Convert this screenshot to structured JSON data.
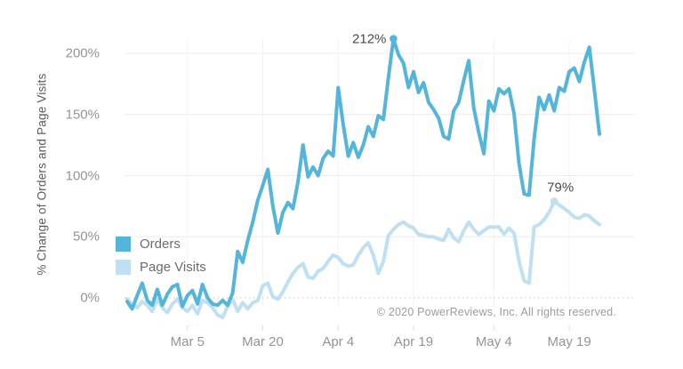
{
  "footer": {
    "copyright": "© 2020 PowerReviews, Inc. All rights reserved."
  },
  "annotations": [
    {
      "text": "212%",
      "series": 0,
      "point_index": 53,
      "value": 212,
      "placement": "left-of-point"
    },
    {
      "text": "79%",
      "series": 1,
      "point_index": 85,
      "value": 79,
      "placement": "above-point"
    }
  ],
  "chart_data": {
    "type": "line",
    "title": "",
    "xlabel": "",
    "ylabel": "% Change of Orders and Page Visits",
    "ylim": [
      -20,
      220
    ],
    "yticks": [
      0,
      50,
      100,
      150,
      200
    ],
    "ytick_labels": [
      "0%",
      "50%",
      "100%",
      "150%",
      "200%"
    ],
    "xtick_labels": [
      "Mar 5",
      "Mar 20",
      "Apr 4",
      "Apr 19",
      "May 4",
      "May 19"
    ],
    "xtick_indices": [
      12,
      27,
      42,
      57,
      73,
      88
    ],
    "grid": "horizontal-light, dotted zero line, faint vertical at date ticks",
    "legend_position": "inside lower-left",
    "series": [
      {
        "name": "Orders",
        "color": "#54b5da",
        "values": [
          -3,
          -9,
          2,
          12,
          -2,
          -6,
          7,
          -6,
          3,
          9,
          11,
          -7,
          2,
          6,
          -5,
          11,
          0,
          -5,
          -6,
          -2,
          -6,
          4,
          38,
          29,
          47,
          62,
          80,
          92,
          105,
          75,
          53,
          70,
          78,
          73,
          95,
          125,
          99,
          107,
          100,
          114,
          120,
          116,
          172,
          142,
          116,
          127,
          115,
          125,
          140,
          132,
          149,
          146,
          180,
          212,
          199,
          192,
          172,
          185,
          168,
          176,
          160,
          154,
          147,
          132,
          130,
          153,
          160,
          178,
          194,
          155,
          135,
          118,
          161,
          153,
          171,
          167,
          171,
          151,
          110,
          85,
          84,
          130,
          164,
          154,
          166,
          153,
          172,
          169,
          185,
          188,
          177,
          193,
          205,
          170,
          134
        ]
      },
      {
        "name": "Page Visits",
        "color": "#bfe0f1",
        "values": [
          -1,
          -5,
          -8,
          -3,
          -6,
          -11,
          -1,
          -8,
          -12,
          -5,
          -1,
          -8,
          -11,
          -6,
          -13,
          -2,
          -4,
          -8,
          -14,
          -16,
          -7,
          -1,
          -11,
          -4,
          -9,
          -4,
          -2,
          10,
          12,
          1,
          -1,
          5,
          13,
          20,
          25,
          28,
          17,
          16,
          22,
          24,
          30,
          35,
          33,
          28,
          26,
          27,
          35,
          41,
          45,
          35,
          20,
          30,
          51,
          56,
          60,
          62,
          59,
          57,
          52,
          51,
          50,
          50,
          48,
          47,
          56,
          49,
          46,
          55,
          62,
          56,
          52,
          55,
          58,
          58,
          58,
          52,
          57,
          53,
          30,
          14,
          12,
          58,
          60,
          64,
          70,
          79,
          76,
          73,
          70,
          66,
          65,
          68,
          67,
          63,
          60
        ]
      }
    ],
    "callouts": [
      {
        "label": "212%",
        "series": "Orders",
        "meaning": "peak % change of orders"
      },
      {
        "label": "79%",
        "series": "Page Visits",
        "meaning": "peak % change of page visits"
      }
    ]
  }
}
